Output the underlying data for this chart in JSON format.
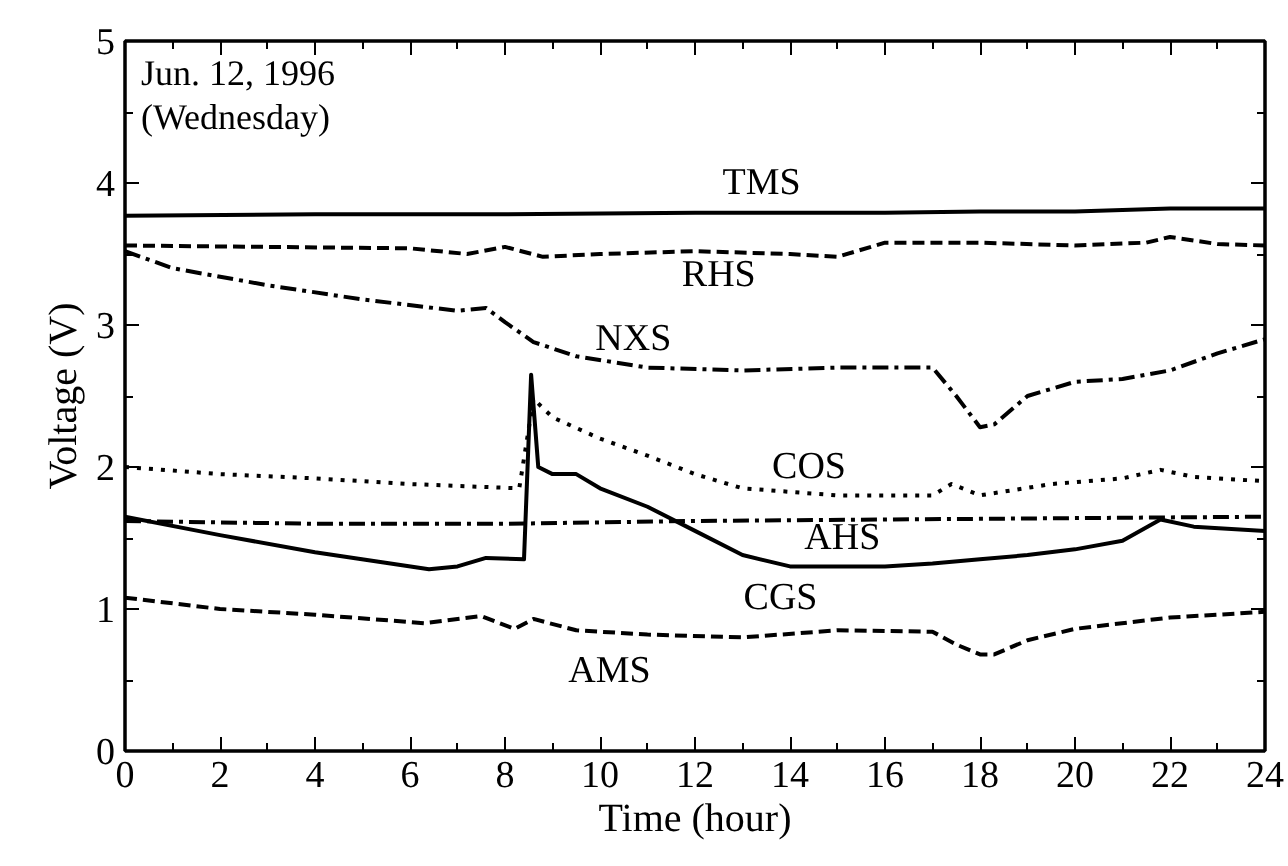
{
  "chart_data": {
    "type": "line",
    "xlabel": "Time (hour)",
    "ylabel": "Voltage (V)",
    "annotations": [
      "Jun. 12, 1996",
      "(Wednesday)"
    ],
    "xlim": [
      0,
      24
    ],
    "xticks": [
      0,
      2,
      4,
      6,
      8,
      10,
      12,
      14,
      16,
      18,
      20,
      22,
      24
    ],
    "ylim": [
      0,
      5
    ],
    "yticks": [
      0,
      1,
      2,
      3,
      4,
      5
    ],
    "grid": false,
    "marker": "none",
    "series": [
      {
        "name": "TMS",
        "color": "#000000",
        "line_style": "solid",
        "x": [
          0,
          4,
          8,
          12,
          16,
          18,
          20,
          22,
          24
        ],
        "values": [
          3.77,
          3.78,
          3.78,
          3.79,
          3.79,
          3.8,
          3.8,
          3.82,
          3.82
        ]
      },
      {
        "name": "RHS",
        "color": "#000000",
        "line_style": "dashed",
        "x": [
          0,
          3,
          6,
          7.2,
          8,
          8.8,
          10,
          12,
          14,
          15,
          16,
          18,
          20,
          21.5,
          22,
          23,
          24
        ],
        "values": [
          3.56,
          3.55,
          3.54,
          3.5,
          3.55,
          3.48,
          3.5,
          3.52,
          3.5,
          3.48,
          3.58,
          3.58,
          3.56,
          3.58,
          3.62,
          3.57,
          3.56
        ]
      },
      {
        "name": "NXS",
        "color": "#000000",
        "line_style": "dashdot",
        "x": [
          0,
          1,
          3,
          5,
          7,
          7.6,
          8,
          8.6,
          9.5,
          11,
          13,
          15,
          17,
          17.5,
          18,
          18.3,
          19,
          20,
          21,
          22,
          23,
          24
        ],
        "values": [
          3.52,
          3.4,
          3.28,
          3.18,
          3.1,
          3.12,
          3.02,
          2.88,
          2.78,
          2.7,
          2.68,
          2.7,
          2.7,
          2.5,
          2.28,
          2.3,
          2.5,
          2.6,
          2.62,
          2.68,
          2.8,
          2.9
        ]
      },
      {
        "name": "COS",
        "color": "#000000",
        "line_style": "dotted",
        "x": [
          0,
          2,
          4,
          6,
          8.3,
          8.6,
          9,
          10,
          11,
          12,
          13,
          15,
          17,
          17.4,
          18,
          19.5,
          21,
          21.8,
          22.5,
          24
        ],
        "values": [
          2.0,
          1.95,
          1.92,
          1.88,
          1.85,
          2.48,
          2.35,
          2.2,
          2.08,
          1.95,
          1.85,
          1.8,
          1.8,
          1.88,
          1.8,
          1.88,
          1.92,
          1.98,
          1.93,
          1.9
        ]
      },
      {
        "name": "AHS",
        "color": "#000000",
        "line_style": "dashdot",
        "x": [
          0,
          4,
          8,
          12,
          16,
          20,
          24
        ],
        "values": [
          1.62,
          1.6,
          1.6,
          1.62,
          1.63,
          1.64,
          1.65
        ]
      },
      {
        "name": "CGS",
        "color": "#000000",
        "line_style": "solid",
        "x": [
          0,
          2,
          4,
          6.4,
          7,
          7.6,
          8.4,
          8.55,
          8.7,
          9,
          9.5,
          10,
          11,
          12,
          13,
          14,
          16,
          17,
          18,
          19,
          20,
          21,
          21.8,
          22.5,
          24
        ],
        "values": [
          1.65,
          1.52,
          1.4,
          1.28,
          1.3,
          1.36,
          1.35,
          2.65,
          2.0,
          1.95,
          1.95,
          1.85,
          1.72,
          1.55,
          1.38,
          1.3,
          1.3,
          1.32,
          1.35,
          1.38,
          1.42,
          1.48,
          1.63,
          1.58,
          1.55
        ]
      },
      {
        "name": "AMS",
        "color": "#000000",
        "line_style": "dashed",
        "x": [
          0,
          2,
          4,
          6.3,
          7.5,
          8.2,
          8.6,
          9.5,
          11,
          13,
          15,
          17,
          17.5,
          18,
          18.3,
          19,
          20,
          22,
          24
        ],
        "values": [
          1.08,
          1.0,
          0.96,
          0.9,
          0.95,
          0.86,
          0.93,
          0.85,
          0.82,
          0.8,
          0.85,
          0.84,
          0.75,
          0.68,
          0.68,
          0.78,
          0.86,
          0.94,
          0.98
        ]
      }
    ]
  }
}
